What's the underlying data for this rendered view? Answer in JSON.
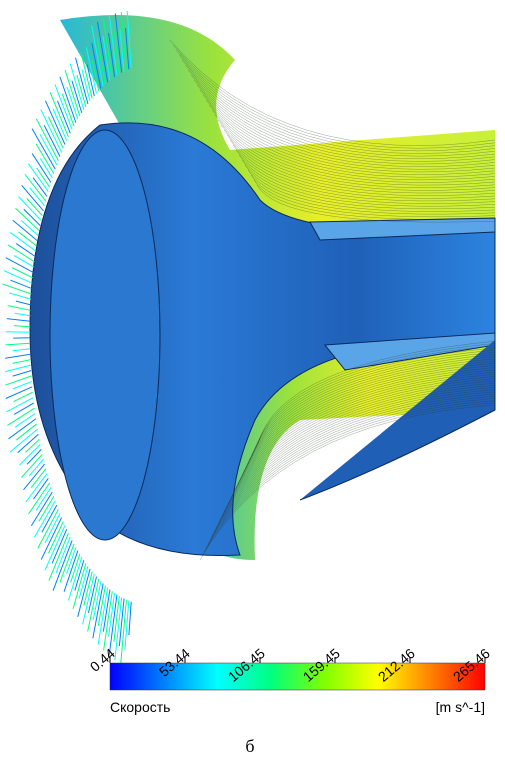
{
  "figure": {
    "colorbar": {
      "label": "Скорость",
      "units": "[m s^-1]",
      "lim": [
        0.44,
        265.46
      ],
      "ticks": [
        0.44,
        53.44,
        106.45,
        159.45,
        212.46,
        265.46
      ],
      "colors": [
        "#0000ff",
        "#0080ff",
        "#00ffff",
        "#00ff80",
        "#80ff00",
        "#ffff00",
        "#ff8000",
        "#ff0000"
      ]
    },
    "caption": "б"
  }
}
